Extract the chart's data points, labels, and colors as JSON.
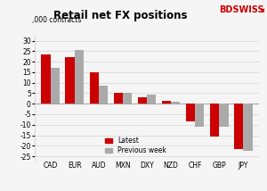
{
  "categories": [
    "CAD",
    "EUR",
    "AUD",
    "MXN",
    "DXY",
    "NZD",
    "CHF",
    "GBP",
    "JPY"
  ],
  "latest": [
    23.5,
    22.0,
    15.0,
    5.0,
    3.2,
    1.2,
    -8.5,
    -15.5,
    -21.5
  ],
  "previous_week": [
    17.0,
    25.5,
    8.5,
    5.0,
    4.2,
    1.0,
    -11.0,
    -11.0,
    -22.5
  ],
  "latest_color": "#cc0000",
  "prev_color": "#aaaaaa",
  "title": "Retail net FX positions",
  "ylabel": ",000 contracts",
  "ylim": [
    -27,
    33
  ],
  "yticks": [
    -25,
    -20,
    -15,
    -10,
    -5,
    0,
    5,
    10,
    15,
    20,
    25,
    30
  ],
  "legend_latest": "Latest",
  "legend_prev": "Previous week",
  "bg_color": "#f5f5f5",
  "logo_text": "BDSWISS",
  "logo_color": "#cc0000"
}
